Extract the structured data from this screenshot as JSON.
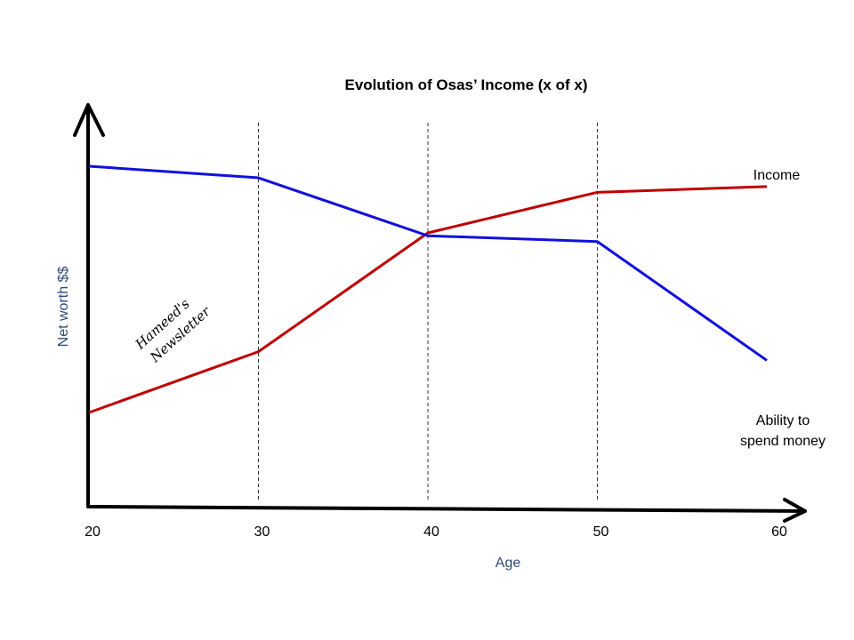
{
  "chart_data": {
    "type": "line",
    "title": "Evolution of Osas’ Income (x of x)",
    "xlabel": "Age",
    "ylabel": "Net worth $$",
    "x": [
      20,
      30,
      40,
      50,
      60
    ],
    "xlim": [
      20,
      60
    ],
    "ylim": [
      0,
      100
    ],
    "grid": "dashed vertical lines at 30, 40, 50",
    "series": [
      {
        "name": "Income",
        "color": "#c00000",
        "points": [
          [
            20,
            15
          ],
          [
            30,
            36
          ],
          [
            40,
            77
          ],
          [
            50,
            91
          ],
          [
            60,
            93
          ]
        ]
      },
      {
        "name": "Ability to spend money",
        "color": "#1010dd",
        "points": [
          [
            20,
            100
          ],
          [
            30,
            96
          ],
          [
            40,
            76
          ],
          [
            50,
            74
          ],
          [
            60,
            33
          ]
        ]
      }
    ],
    "series_label_lines": [
      [
        "Income"
      ],
      [
        "Ability to",
        "spend money"
      ]
    ],
    "watermark": [
      "Hameed's",
      "Newsletter"
    ],
    "axis_color": "#000000",
    "axis_label_color": "#2e4a7a"
  }
}
